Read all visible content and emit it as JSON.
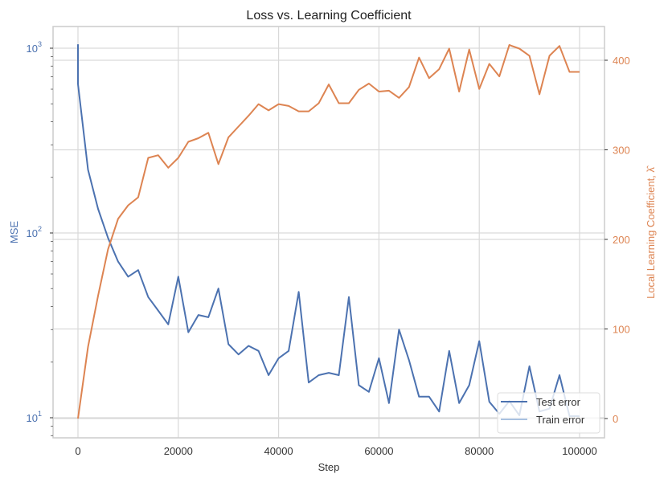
{
  "chart_data": {
    "type": "line",
    "title": "Loss vs. Learning Coefficient",
    "xlabel": "Step",
    "ylabel_left": "MSE",
    "ylabel_right": "Local Learning Coefficient, λ̂",
    "x_ticks": [
      0,
      20000,
      40000,
      60000,
      80000,
      100000
    ],
    "x_tick_labels": [
      "0",
      "20000",
      "40000",
      "60000",
      "80000",
      "100000"
    ],
    "xlim": [
      -5000,
      105000
    ],
    "left_axis": {
      "scale": "log",
      "ticks": [
        10,
        100,
        1000
      ],
      "tick_labels": [
        "10^1",
        "10^2",
        "10^3"
      ],
      "ylim": [
        7.5,
        1300
      ]
    },
    "right_axis": {
      "scale": "linear",
      "ticks": [
        0,
        100,
        200,
        300,
        400
      ],
      "tick_labels": [
        "0",
        "100",
        "200",
        "300",
        "400"
      ],
      "ylim": [
        -20,
        435
      ]
    },
    "grid": true,
    "legend_position": "lower right",
    "x": [
      0,
      2000,
      4000,
      6000,
      8000,
      10000,
      12000,
      14000,
      16000,
      18000,
      20000,
      22000,
      24000,
      26000,
      28000,
      30000,
      32000,
      34000,
      36000,
      38000,
      40000,
      42000,
      44000,
      46000,
      48000,
      50000,
      52000,
      54000,
      56000,
      58000,
      60000,
      62000,
      64000,
      66000,
      68000,
      70000,
      72000,
      74000,
      76000,
      78000,
      80000,
      82000,
      84000,
      86000,
      88000,
      90000,
      92000,
      94000,
      96000,
      98000,
      100000
    ],
    "series": [
      {
        "name": "Test error",
        "axis": "left",
        "color": "#4c72b0",
        "values": [
          640,
          220,
          135,
          94,
          70,
          58,
          63,
          45,
          38,
          32,
          58,
          29,
          36,
          35,
          50,
          25,
          22,
          24.5,
          23,
          17,
          21,
          23,
          48,
          15.5,
          17,
          17.5,
          17,
          45,
          15,
          13.8,
          21,
          12,
          30,
          20.5,
          13,
          13,
          10.8,
          23,
          12,
          15,
          26,
          12.2,
          10.5,
          12.3,
          10.3,
          19,
          10.8,
          11.2,
          17,
          10.2,
          10.2
        ],
        "initial_value": 1050
      },
      {
        "name": "Train error",
        "axis": "left",
        "color": "#a8c0e0",
        "values": [
          640,
          220,
          135,
          94,
          70,
          58,
          63,
          45,
          38,
          32,
          58,
          29,
          36,
          35,
          50,
          25,
          22,
          24.5,
          23,
          17,
          21,
          23,
          48,
          15.5,
          17,
          17.5,
          17,
          45,
          15,
          13.8,
          21,
          12,
          30,
          20.5,
          13,
          13,
          10.8,
          23,
          12,
          15,
          26,
          12.2,
          10.5,
          12.3,
          10.3,
          19,
          10.8,
          11.2,
          17,
          10.2,
          10.2
        ]
      },
      {
        "name": "Local Learning Coefficient",
        "axis": "right",
        "color": "#dd8452",
        "values": [
          0,
          80,
          137,
          189,
          223,
          238,
          247,
          291,
          294,
          280,
          291,
          309,
          313,
          319,
          284,
          314,
          326,
          338,
          351,
          344,
          351,
          349,
          343,
          343,
          352,
          373,
          352,
          352,
          367,
          374,
          365,
          366,
          358,
          370,
          403,
          380,
          390,
          413,
          365,
          412,
          368,
          396,
          382,
          417,
          413,
          405,
          362,
          405,
          416,
          387,
          387
        ]
      }
    ]
  },
  "labels": {
    "title": "Loss vs. Learning Coefficient",
    "xlabel": "Step",
    "ylabel_left": "MSE",
    "ylabel_right": "Local Learning Coefficient, λ̂",
    "legend_test": "Test error",
    "legend_train": "Train error"
  }
}
